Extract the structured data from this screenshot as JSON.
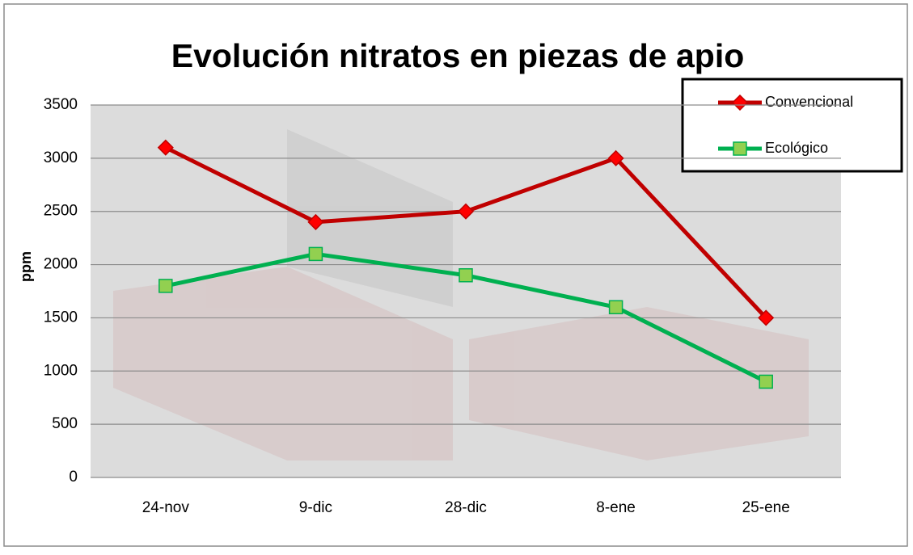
{
  "chart_data": {
    "type": "line",
    "title": "Evolución nitratos en piezas de apio",
    "y_label": "ppm",
    "categories": [
      "24-nov",
      "9-dic",
      "28-dic",
      "8-ene",
      "25-ene"
    ],
    "series": [
      {
        "name": "Convencional",
        "color": "#c00000",
        "marker": "diamond",
        "marker_color": "#ff0000",
        "values": [
          3100,
          2400,
          2500,
          3000,
          1500
        ]
      },
      {
        "name": "Ecológico",
        "color": "#00b050",
        "marker": "square",
        "marker_color": "#92d050",
        "values": [
          1800,
          2100,
          1900,
          1600,
          900
        ]
      }
    ],
    "ylim": [
      0,
      3500
    ],
    "yticks": [
      0,
      500,
      1000,
      1500,
      2000,
      2500,
      3000,
      3500
    ],
    "grid": true,
    "legend": "upper right"
  }
}
